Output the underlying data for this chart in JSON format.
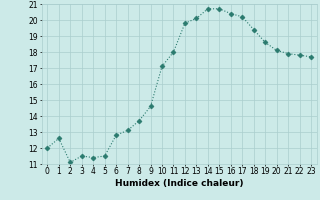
{
  "x": [
    0,
    1,
    2,
    3,
    4,
    5,
    6,
    7,
    8,
    9,
    10,
    11,
    12,
    13,
    14,
    15,
    16,
    17,
    18,
    19,
    20,
    21,
    22,
    23
  ],
  "y": [
    12.0,
    12.6,
    11.1,
    11.5,
    11.4,
    11.5,
    12.8,
    13.1,
    13.7,
    14.6,
    17.1,
    18.0,
    19.8,
    20.1,
    20.7,
    20.7,
    20.4,
    20.2,
    19.4,
    18.6,
    18.1,
    17.9,
    17.8,
    17.7
  ],
  "xlabel": "Humidex (Indice chaleur)",
  "line_color": "#2a7a6e",
  "marker": "D",
  "marker_size": 2.5,
  "bg_color": "#cceae8",
  "grid_color": "#aacece",
  "ylim": [
    11,
    21
  ],
  "xlim": [
    -0.5,
    23.5
  ],
  "yticks": [
    11,
    12,
    13,
    14,
    15,
    16,
    17,
    18,
    19,
    20,
    21
  ],
  "xticks": [
    0,
    1,
    2,
    3,
    4,
    5,
    6,
    7,
    8,
    9,
    10,
    11,
    12,
    13,
    14,
    15,
    16,
    17,
    18,
    19,
    20,
    21,
    22,
    23
  ],
  "xtick_labels": [
    "0",
    "1",
    "2",
    "3",
    "4",
    "5",
    "6",
    "7",
    "8",
    "9",
    "10",
    "11",
    "12",
    "13",
    "14",
    "15",
    "16",
    "17",
    "18",
    "19",
    "20",
    "21",
    "22",
    "23"
  ],
  "label_fontsize": 6.5,
  "tick_fontsize": 5.5
}
